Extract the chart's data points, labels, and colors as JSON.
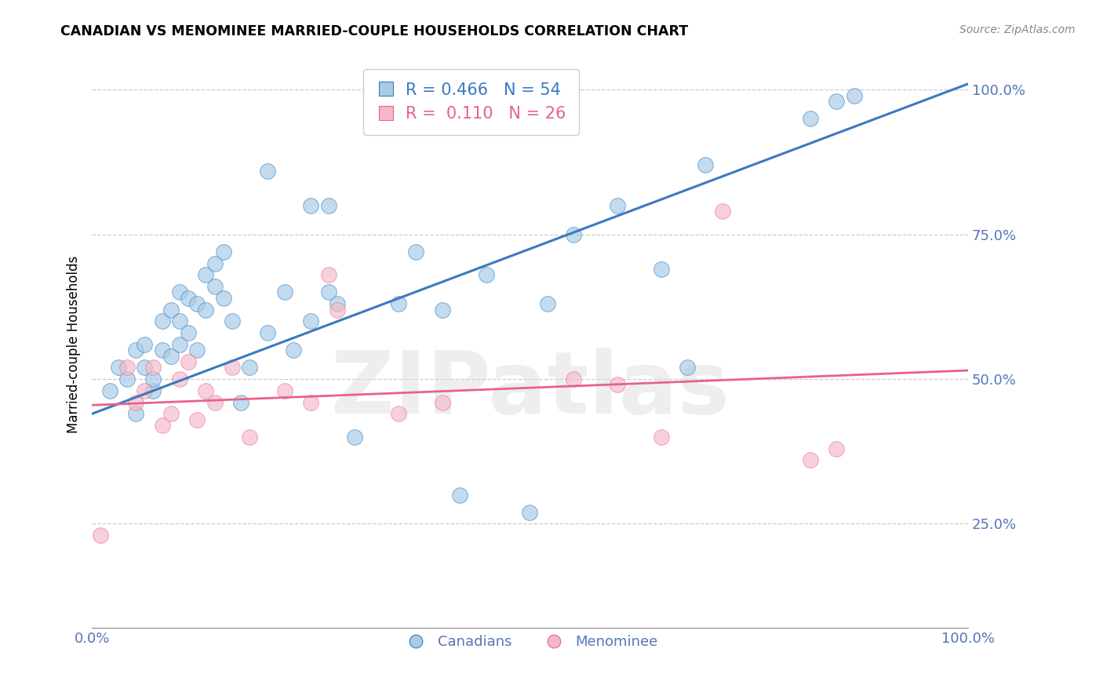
{
  "title": "CANADIAN VS MENOMINEE MARRIED-COUPLE HOUSEHOLDS CORRELATION CHART",
  "source": "Source: ZipAtlas.com",
  "ylabel": "Married-couple Households",
  "ytick_values": [
    0.25,
    0.5,
    0.75,
    1.0
  ],
  "xmin": 0.0,
  "xmax": 1.0,
  "ymin": 0.07,
  "ymax": 1.05,
  "legend_blue_r": "0.466",
  "legend_blue_n": "54",
  "legend_pink_r": "0.110",
  "legend_pink_n": "26",
  "blue_scatter_color": "#a8cce8",
  "pink_scatter_color": "#f4b8c8",
  "line_blue": "#3a7abf",
  "line_pink": "#e8628a",
  "tick_color": "#5575b8",
  "grid_color": "#cccccc",
  "watermark": "ZIPatlas",
  "canadians_x": [
    0.02,
    0.03,
    0.04,
    0.05,
    0.05,
    0.06,
    0.06,
    0.07,
    0.07,
    0.08,
    0.08,
    0.09,
    0.09,
    0.1,
    0.1,
    0.1,
    0.11,
    0.11,
    0.12,
    0.12,
    0.13,
    0.13,
    0.14,
    0.14,
    0.15,
    0.15,
    0.16,
    0.17,
    0.18,
    0.2,
    0.22,
    0.23,
    0.25,
    0.27,
    0.28,
    0.3,
    0.35,
    0.37,
    0.4,
    0.42,
    0.45,
    0.5,
    0.52,
    0.55,
    0.6,
    0.65,
    0.68,
    0.7,
    0.82,
    0.85,
    0.87,
    0.2,
    0.25,
    0.27
  ],
  "canadians_y": [
    0.48,
    0.52,
    0.5,
    0.44,
    0.55,
    0.52,
    0.56,
    0.48,
    0.5,
    0.55,
    0.6,
    0.54,
    0.62,
    0.56,
    0.6,
    0.65,
    0.58,
    0.64,
    0.55,
    0.63,
    0.68,
    0.62,
    0.66,
    0.7,
    0.64,
    0.72,
    0.6,
    0.46,
    0.52,
    0.58,
    0.65,
    0.55,
    0.6,
    0.65,
    0.63,
    0.4,
    0.63,
    0.72,
    0.62,
    0.3,
    0.68,
    0.27,
    0.63,
    0.75,
    0.8,
    0.69,
    0.52,
    0.87,
    0.95,
    0.98,
    0.99,
    0.86,
    0.8,
    0.8
  ],
  "menominee_x": [
    0.01,
    0.04,
    0.05,
    0.06,
    0.07,
    0.08,
    0.09,
    0.1,
    0.11,
    0.12,
    0.13,
    0.14,
    0.16,
    0.18,
    0.22,
    0.25,
    0.28,
    0.35,
    0.4,
    0.55,
    0.6,
    0.65,
    0.72,
    0.82,
    0.85,
    0.27
  ],
  "menominee_y": [
    0.23,
    0.52,
    0.46,
    0.48,
    0.52,
    0.42,
    0.44,
    0.5,
    0.53,
    0.43,
    0.48,
    0.46,
    0.52,
    0.4,
    0.48,
    0.46,
    0.62,
    0.44,
    0.46,
    0.5,
    0.49,
    0.4,
    0.79,
    0.36,
    0.38,
    0.68
  ],
  "blue_trend_x0": 0.0,
  "blue_trend_x1": 1.0,
  "blue_trend_y0": 0.44,
  "blue_trend_y1": 1.01,
  "pink_trend_x0": 0.0,
  "pink_trend_x1": 1.0,
  "pink_trend_y0": 0.455,
  "pink_trend_y1": 0.515
}
